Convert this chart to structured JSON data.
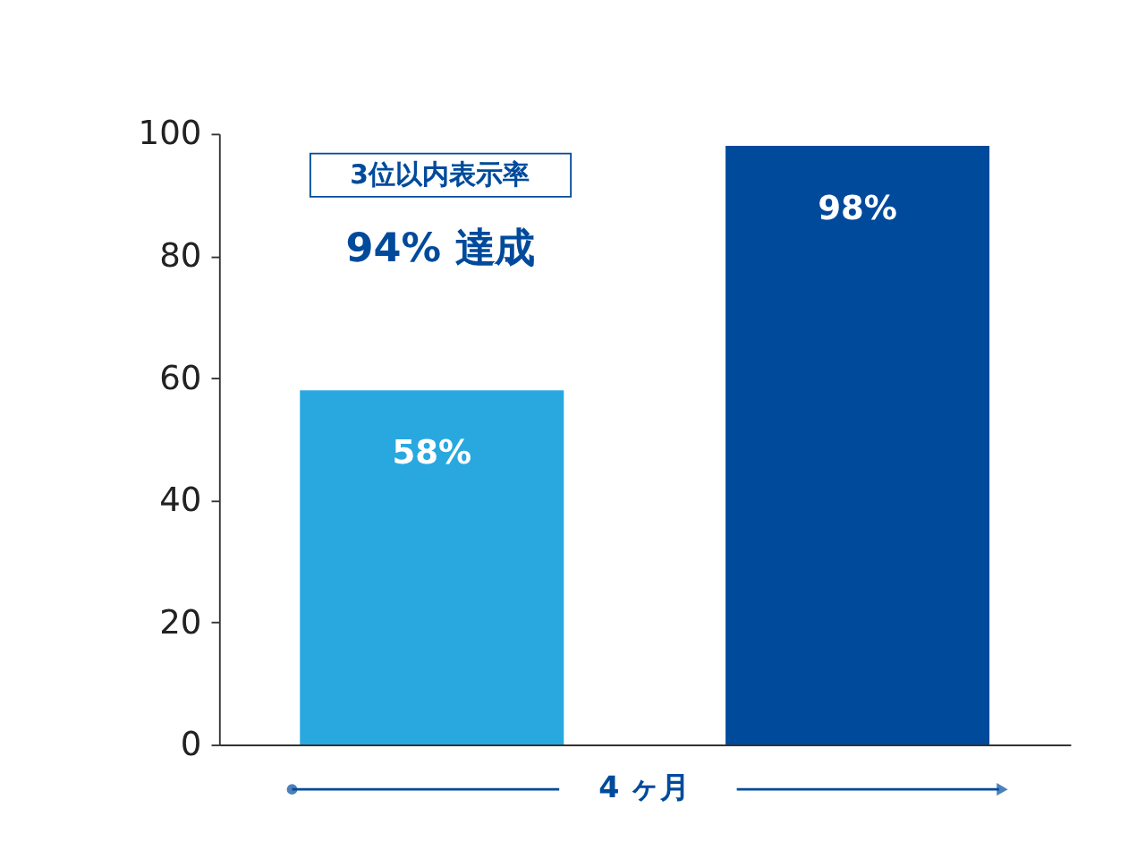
{
  "chart_data": {
    "type": "bar",
    "categories": [
      null,
      null
    ],
    "values": [
      58,
      98
    ],
    "colors": [
      "#29a8e0",
      "#004a9c"
    ],
    "value_labels": [
      "58%",
      "98%"
    ],
    "xlabel": "4 ヶ月",
    "ylim": [
      0,
      100
    ],
    "yticks": [
      0,
      20,
      40,
      60,
      80,
      100
    ],
    "grid": false,
    "annotations": [
      "3位以内表示率",
      "94% 達成"
    ]
  }
}
